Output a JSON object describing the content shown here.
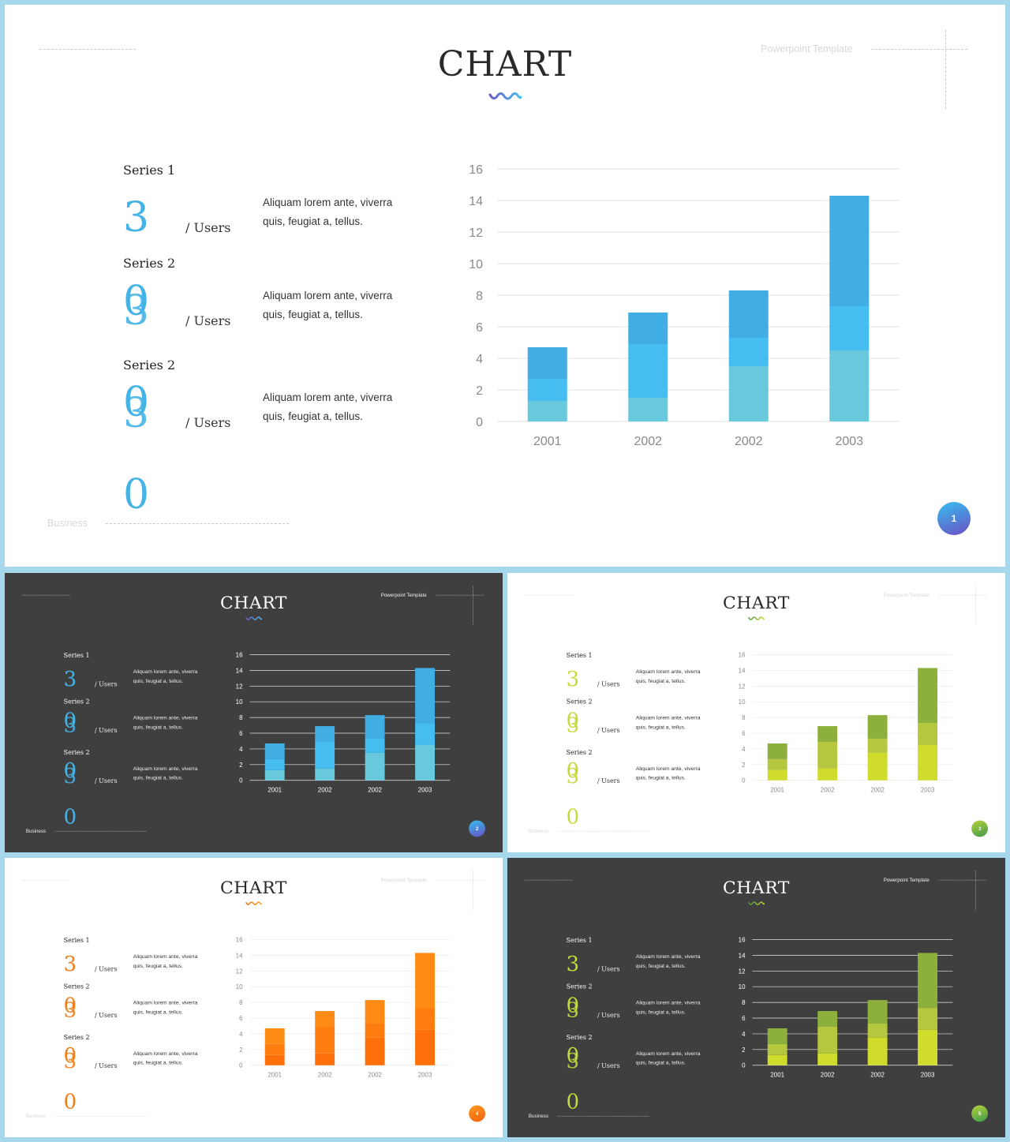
{
  "slides": [
    {
      "id": "slide-1",
      "theme": "light",
      "title": "CHART",
      "template_label": "Powerpoint Template",
      "business_label": "Business",
      "page_number": "1",
      "accent": "#45b3e6",
      "badge_gradient": [
        "#35c0ef",
        "#6b4fc4"
      ],
      "wave_colors": [
        "#6a5acd",
        "#45c1e6"
      ],
      "series_blocks": [
        {
          "label": "Series 1",
          "digit": "3",
          "digit_ghost": "",
          "users": "/ Users",
          "text": "Aliquam lorem ante, viverra quis, feugiat a, tellus."
        },
        {
          "label": "Series 2",
          "digit": "0",
          "digit_ghost": "3",
          "users": "/ Users",
          "text": "Aliquam lorem ante, viverra quis, feugiat a, tellus."
        },
        {
          "label": "Series 2",
          "digit": "0",
          "digit_ghost": "3",
          "users": "/ Users",
          "text": "Aliquam lorem ante, viverra quis, feugiat a, tellus."
        }
      ],
      "extra_digit": "0",
      "series_colors": [
        "#68c9dd",
        "#45bdf0",
        "#40ade3"
      ]
    },
    {
      "id": "slide-2",
      "theme": "dark",
      "title": "CHART",
      "template_label": "Powerpoint Template",
      "business_label": "Business",
      "page_number": "2",
      "accent": "#45b3e6",
      "badge_gradient": [
        "#35c0ef",
        "#6b4fc4"
      ],
      "wave_colors": [
        "#6a5acd",
        "#45c1e6"
      ],
      "series_blocks": [
        {
          "label": "Series 1",
          "digit": "3",
          "digit_ghost": "",
          "users": "/ Users",
          "text": "Aliquam lorem ante, viverra quis, feugiat a, tellus."
        },
        {
          "label": "Series 2",
          "digit": "0",
          "digit_ghost": "3",
          "users": "/ Users",
          "text": "Aliquam lorem ante, viverra quis, feugiat a, tellus."
        },
        {
          "label": "Series 2",
          "digit": "0",
          "digit_ghost": "3",
          "users": "/ Users",
          "text": "Aliquam lorem ante, viverra quis, feugiat a, tellus."
        }
      ],
      "extra_digit": "0",
      "series_colors": [
        "#68c9dd",
        "#45bdf0",
        "#40ade3"
      ]
    },
    {
      "id": "slide-3",
      "theme": "light",
      "title": "CHART",
      "template_label": "Powerpoint Template",
      "business_label": "Business",
      "page_number": "3",
      "accent": "#c5d93a",
      "badge_gradient": [
        "#b6d23a",
        "#3f9a4a"
      ],
      "wave_colors": [
        "#4f9a3a",
        "#c6d83a"
      ],
      "series_blocks": [
        {
          "label": "Series 1",
          "digit": "3",
          "digit_ghost": "",
          "users": "/ Users",
          "text": "Aliquam lorem ante, viverra quis, feugiat a, tellus."
        },
        {
          "label": "Series 2",
          "digit": "0",
          "digit_ghost": "3",
          "users": "/ Users",
          "text": "Aliquam lorem ante, viverra quis, feugiat a, tellus."
        },
        {
          "label": "Series 2",
          "digit": "0",
          "digit_ghost": "3",
          "users": "/ Users",
          "text": "Aliquam lorem ante, viverra quis, feugiat a, tellus."
        }
      ],
      "extra_digit": "0",
      "series_colors": [
        "#cfdc2c",
        "#b5c73e",
        "#8db03d"
      ]
    },
    {
      "id": "slide-4",
      "theme": "light",
      "title": "CHART",
      "template_label": "Powerpoint Template",
      "business_label": "Business",
      "page_number": "4",
      "accent": "#f07f1a",
      "badge_gradient": [
        "#ff9a1f",
        "#f06010"
      ],
      "wave_colors": [
        "#f06f12",
        "#f8a21d"
      ],
      "series_blocks": [
        {
          "label": "Series 1",
          "digit": "3",
          "digit_ghost": "",
          "users": "/ Users",
          "text": "Aliquam lorem ante, viverra quis, feugiat a, tellus."
        },
        {
          "label": "Series 2",
          "digit": "0",
          "digit_ghost": "3",
          "users": "/ Users",
          "text": "Aliquam lorem ante, viverra quis, feugiat a, tellus."
        },
        {
          "label": "Series 2",
          "digit": "0",
          "digit_ghost": "3",
          "users": "/ Users",
          "text": "Aliquam lorem ante, viverra quis, feugiat a, tellus."
        }
      ],
      "extra_digit": "0",
      "series_colors": [
        "#ff6f0a",
        "#ff7d0f",
        "#ff8a14"
      ]
    },
    {
      "id": "slide-5",
      "theme": "dark",
      "title": "CHART",
      "template_label": "Powerpoint Template",
      "business_label": "Business",
      "page_number": "5",
      "accent": "#c5d93a",
      "badge_gradient": [
        "#b6d23a",
        "#3f9a4a"
      ],
      "wave_colors": [
        "#4f9a3a",
        "#c6d83a"
      ],
      "series_blocks": [
        {
          "label": "Series 1",
          "digit": "3",
          "digit_ghost": "",
          "users": "/ Users",
          "text": "Aliquam lorem ante, viverra quis, feugiat a, tellus."
        },
        {
          "label": "Series 2",
          "digit": "0",
          "digit_ghost": "3",
          "users": "/ Users",
          "text": "Aliquam lorem ante, viverra quis, feugiat a, tellus."
        },
        {
          "label": "Series 2",
          "digit": "0",
          "digit_ghost": "3",
          "users": "/ Users",
          "text": "Aliquam lorem ante, viverra quis, feugiat a, tellus."
        }
      ],
      "extra_digit": "0",
      "series_colors": [
        "#cfdc2c",
        "#b5c73e",
        "#8db03d"
      ]
    }
  ],
  "chart_data": {
    "type": "bar",
    "stacked": true,
    "categories": [
      "2001",
      "2002",
      "2002",
      "2003"
    ],
    "series": [
      {
        "values": [
          1.3,
          1.5,
          3.5,
          4.5
        ]
      },
      {
        "values": [
          1.4,
          3.4,
          1.8,
          2.8
        ]
      },
      {
        "values": [
          2.0,
          2.0,
          3.0,
          7.0
        ]
      }
    ],
    "ylim": [
      0,
      16
    ],
    "yticks": [
      0,
      2,
      4,
      6,
      8,
      10,
      12,
      14,
      16
    ],
    "grid": true,
    "title": "",
    "xlabel": "",
    "ylabel": ""
  }
}
